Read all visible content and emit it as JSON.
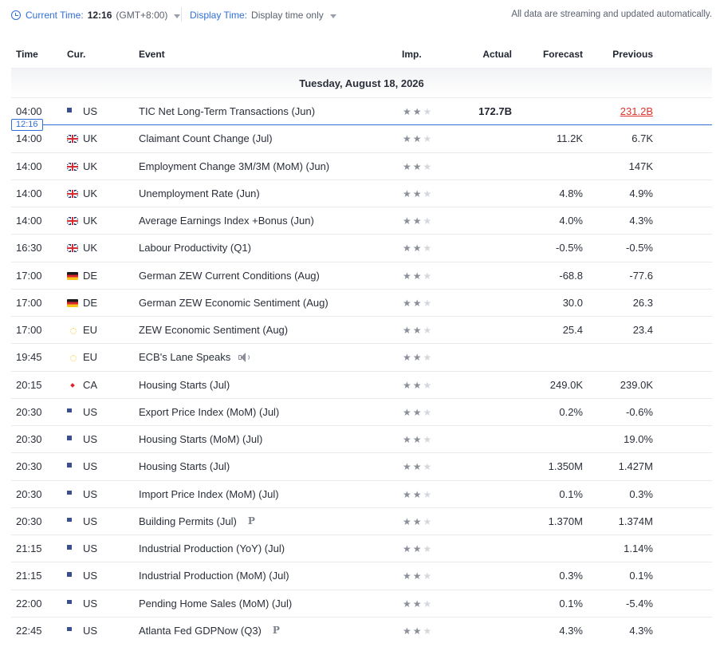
{
  "topbar": {
    "current_time_label": "Current Time:",
    "current_time_value": "12:16",
    "timezone": "(GMT+8:00)",
    "display_time_label": "Display Time:",
    "display_time_value": "Display time only",
    "notice": "All data are streaming and updated automatically."
  },
  "table": {
    "headers": {
      "time": "Time",
      "currency": "Cur.",
      "event": "Event",
      "importance": "Imp.",
      "actual": "Actual",
      "forecast": "Forecast",
      "previous": "Previous"
    },
    "date": "Tuesday, August 18, 2026",
    "now_marker": "12:16",
    "rows": [
      {
        "time": "04:00",
        "flag": "us",
        "cur": "US",
        "event": "TIC Net Long-Term Transactions  (Jun)",
        "stars": 2,
        "actual": "172.7B",
        "forecast": "",
        "previous": "231.2B",
        "previous_revised": true,
        "icon": ""
      },
      {
        "time": "14:00",
        "flag": "uk",
        "cur": "UK",
        "event": "Claimant Count Change  (Jul)",
        "stars": 2,
        "actual": "",
        "forecast": "11.2K",
        "previous": "6.7K",
        "icon": ""
      },
      {
        "time": "14:00",
        "flag": "uk",
        "cur": "UK",
        "event": "Employment Change 3M/3M (MoM) (Jun)",
        "stars": 2,
        "actual": "",
        "forecast": "",
        "previous": "147K",
        "icon": ""
      },
      {
        "time": "14:00",
        "flag": "uk",
        "cur": "UK",
        "event": "Unemployment Rate  (Jun)",
        "stars": 2,
        "actual": "",
        "forecast": "4.8%",
        "previous": "4.9%",
        "icon": ""
      },
      {
        "time": "14:00",
        "flag": "uk",
        "cur": "UK",
        "event": "Average Earnings Index +Bonus  (Jun)",
        "stars": 2,
        "actual": "",
        "forecast": "4.0%",
        "previous": "4.3%",
        "icon": ""
      },
      {
        "time": "16:30",
        "flag": "uk",
        "cur": "UK",
        "event": "Labour Productivity  (Q1)",
        "stars": 2,
        "actual": "",
        "forecast": "-0.5%",
        "previous": "-0.5%",
        "icon": ""
      },
      {
        "time": "17:00",
        "flag": "de",
        "cur": "DE",
        "event": "German ZEW Current Conditions  (Aug)",
        "stars": 2,
        "actual": "",
        "forecast": "-68.8",
        "previous": "-77.6",
        "icon": ""
      },
      {
        "time": "17:00",
        "flag": "de",
        "cur": "DE",
        "event": "German ZEW Economic Sentiment  (Aug)",
        "stars": 2,
        "actual": "",
        "forecast": "30.0",
        "previous": "26.3",
        "icon": ""
      },
      {
        "time": "17:00",
        "flag": "eu",
        "cur": "EU",
        "event": "ZEW Economic Sentiment  (Aug)",
        "stars": 2,
        "actual": "",
        "forecast": "25.4",
        "previous": "23.4",
        "icon": ""
      },
      {
        "time": "19:45",
        "flag": "eu",
        "cur": "EU",
        "event": "ECB's Lane Speaks",
        "stars": 2,
        "actual": "",
        "forecast": "",
        "previous": "",
        "icon": "speaker"
      },
      {
        "time": "20:15",
        "flag": "ca",
        "cur": "CA",
        "event": "Housing Starts  (Jul)",
        "stars": 2,
        "actual": "",
        "forecast": "249.0K",
        "previous": "239.0K",
        "icon": ""
      },
      {
        "time": "20:30",
        "flag": "us",
        "cur": "US",
        "event": "Export Price Index (MoM) (Jul)",
        "stars": 2,
        "actual": "",
        "forecast": "0.2%",
        "previous": "-0.6%",
        "icon": ""
      },
      {
        "time": "20:30",
        "flag": "us",
        "cur": "US",
        "event": "Housing Starts (MoM) (Jul)",
        "stars": 2,
        "actual": "",
        "forecast": "",
        "previous": "19.0%",
        "icon": ""
      },
      {
        "time": "20:30",
        "flag": "us",
        "cur": "US",
        "event": "Housing Starts  (Jul)",
        "stars": 2,
        "actual": "",
        "forecast": "1.350M",
        "previous": "1.427M",
        "icon": ""
      },
      {
        "time": "20:30",
        "flag": "us",
        "cur": "US",
        "event": "Import Price Index (MoM) (Jul)",
        "stars": 2,
        "actual": "",
        "forecast": "0.1%",
        "previous": "0.3%",
        "icon": ""
      },
      {
        "time": "20:30",
        "flag": "us",
        "cur": "US",
        "event": "Building Permits  (Jul)",
        "stars": 2,
        "actual": "",
        "forecast": "1.370M",
        "previous": "1.374M",
        "icon": "preliminary",
        "icon_text": "P"
      },
      {
        "time": "21:15",
        "flag": "us",
        "cur": "US",
        "event": "Industrial Production (YoY) (Jul)",
        "stars": 2,
        "actual": "",
        "forecast": "",
        "previous": "1.14%",
        "icon": ""
      },
      {
        "time": "21:15",
        "flag": "us",
        "cur": "US",
        "event": "Industrial Production (MoM) (Jul)",
        "stars": 2,
        "actual": "",
        "forecast": "0.3%",
        "previous": "0.1%",
        "icon": ""
      },
      {
        "time": "22:00",
        "flag": "us",
        "cur": "US",
        "event": "Pending Home Sales (MoM) (Jul)",
        "stars": 2,
        "actual": "",
        "forecast": "0.1%",
        "previous": "-5.4%",
        "icon": ""
      },
      {
        "time": "22:45",
        "flag": "us",
        "cur": "US",
        "event": "Atlanta Fed GDPNow  (Q3)",
        "stars": 2,
        "actual": "",
        "forecast": "4.3%",
        "previous": "4.3%",
        "icon": "preliminary",
        "icon_text": "P"
      }
    ]
  },
  "colors": {
    "accent": "#2f6fd8",
    "revised": "#d9342b",
    "star_on": "#8a8f99",
    "star_off": "#d4d7dc"
  }
}
